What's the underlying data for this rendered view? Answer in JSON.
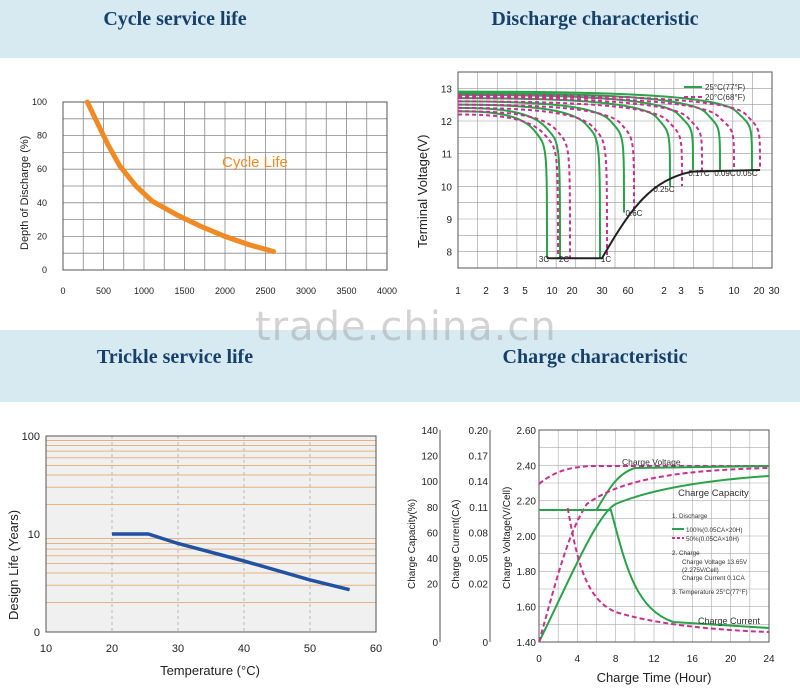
{
  "titles": {
    "cycle": "Cycle service life",
    "discharge": "Discharge characteristic",
    "trickle": "Trickle service life",
    "charge": "Charge characteristic"
  },
  "watermark": "trade.china.cn",
  "colors": {
    "header": "#d7eaf1",
    "title": "#16406b",
    "orange": "#f08a24",
    "blue": "#2151a3",
    "green": "#2aa24a",
    "magenta": "#c8308f"
  },
  "chart_data": [
    {
      "id": "cycle",
      "type": "line",
      "xlabel": "",
      "ylabel": "Depth of Discharge (%)",
      "xlim": [
        0,
        4000
      ],
      "ylim": [
        0,
        100
      ],
      "xticks": [
        0,
        500,
        1000,
        1500,
        2000,
        2500,
        3000,
        3500,
        4000
      ],
      "yticks": [
        0,
        20,
        40,
        60,
        80,
        100
      ],
      "series": [
        {
          "name": "Cycle Life",
          "x": [
            300,
            400,
            550,
            700,
            900,
            1100,
            1400,
            1700,
            2000,
            2300,
            2600
          ],
          "y": [
            100,
            90,
            75,
            62,
            50,
            41,
            33,
            26,
            20,
            15,
            11
          ]
        }
      ],
      "annotation": "Cycle Life"
    },
    {
      "id": "discharge",
      "type": "line",
      "ylabel": "Terminal Voltage(V)",
      "ylim": [
        7.5,
        13.5
      ],
      "yticks": [
        8,
        9,
        10,
        11,
        12,
        13
      ],
      "xtick_labels": [
        "1",
        "2",
        "3",
        "5",
        "10",
        "20",
        "30",
        "60",
        "2",
        "3",
        "5",
        "10",
        "20",
        "30"
      ],
      "legend": [
        "25°C(77°F)",
        "20°C(68°F)"
      ],
      "rate_labels": [
        "3C",
        "2C",
        "1C",
        "0.6C",
        "0.25C",
        "0.17C",
        "0.09C",
        "0.05C"
      ]
    },
    {
      "id": "trickle",
      "type": "line",
      "xlabel": "Temperature (°C)",
      "ylabel": "Design Life (Years)",
      "xlim": [
        10,
        60
      ],
      "xticks": [
        10,
        20,
        30,
        40,
        50,
        60
      ],
      "ytick_labels": [
        "100",
        "10",
        "0"
      ],
      "series": [
        {
          "name": "",
          "x": [
            20,
            25.5,
            30,
            40,
            50,
            56
          ],
          "y_years": [
            10,
            10,
            8,
            5.3,
            3.4,
            2.7
          ]
        }
      ]
    },
    {
      "id": "charge",
      "type": "line",
      "xlabel": "Charge Time (Hour)",
      "ylabel_capacity": "Charge Capacity(%)",
      "ylabel_current": "Charge Current(CA)",
      "ylabel_voltage": "Charge Voltage(V/Cell)",
      "capacity_ticks": [
        "140",
        "120",
        "100",
        "80",
        "60",
        "40",
        "20",
        "0"
      ],
      "current_ticks": [
        "0.20",
        "0.17",
        "0.14",
        "0.11",
        "0.08",
        "0.05",
        "0.02",
        "0"
      ],
      "voltage_ticks": [
        "2.60",
        "2.40",
        "2.20",
        "2.00",
        "1.80",
        "1.60",
        "1.40"
      ],
      "xticks": [
        0,
        4,
        8,
        12,
        16,
        20,
        24
      ],
      "curve_labels": [
        "Charge Voltage",
        "Charge Capacity",
        "Charge Current"
      ],
      "notes": [
        "1. Discharge",
        "100%(0.05CA×20H)",
        "50%(0.05CA×10H)",
        "2. Charge",
        "Charge Voltage 13.65V",
        "(2.275V/Cell)",
        "Charge Current 0.1CA",
        "3. Temperature 25°C(77°F)"
      ]
    }
  ]
}
